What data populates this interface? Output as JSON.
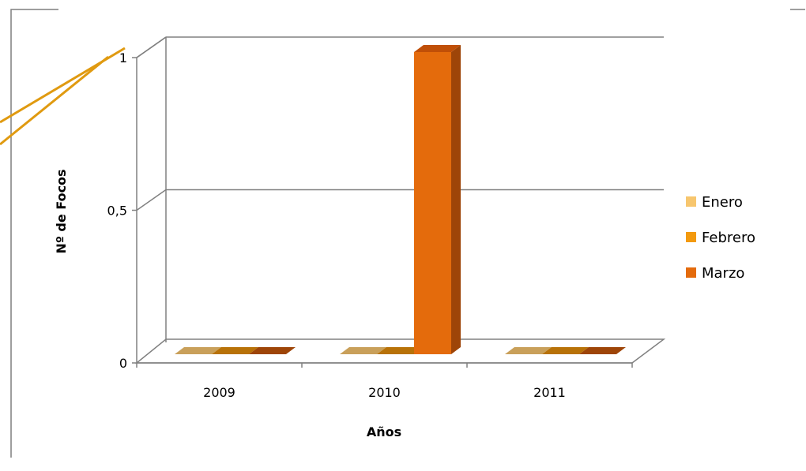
{
  "chart_data": {
    "type": "bar",
    "title": "",
    "xlabel": "Años",
    "ylabel": "Nº de Focos",
    "categories": [
      "2009",
      "2010",
      "2011"
    ],
    "series": [
      {
        "name": "Enero",
        "values": [
          0,
          0,
          0
        ]
      },
      {
        "name": "Febrero",
        "values": [
          0,
          0,
          0
        ]
      },
      {
        "name": "Marzo",
        "values": [
          0,
          1,
          0
        ]
      }
    ],
    "ylim": [
      0,
      1
    ],
    "yticks": [
      0,
      0.5,
      1
    ],
    "ytick_labels": [
      "0",
      "0,5",
      "1"
    ],
    "grid": true,
    "legend_position": "right",
    "style_3d": true,
    "colors": {
      "Enero": "#f7c66e",
      "Febrero": "#f39a0f",
      "Marzo": "#e46b0c"
    },
    "shade_colors": {
      "Enero": {
        "top": "#fad690",
        "side": "#c9a05a"
      },
      "Febrero": {
        "top": "#f7b54a",
        "side": "#b87208"
      },
      "Marzo": {
        "top": "#c04f07",
        "side": "#9e4508"
      }
    },
    "callout_color": "#e09a10"
  }
}
